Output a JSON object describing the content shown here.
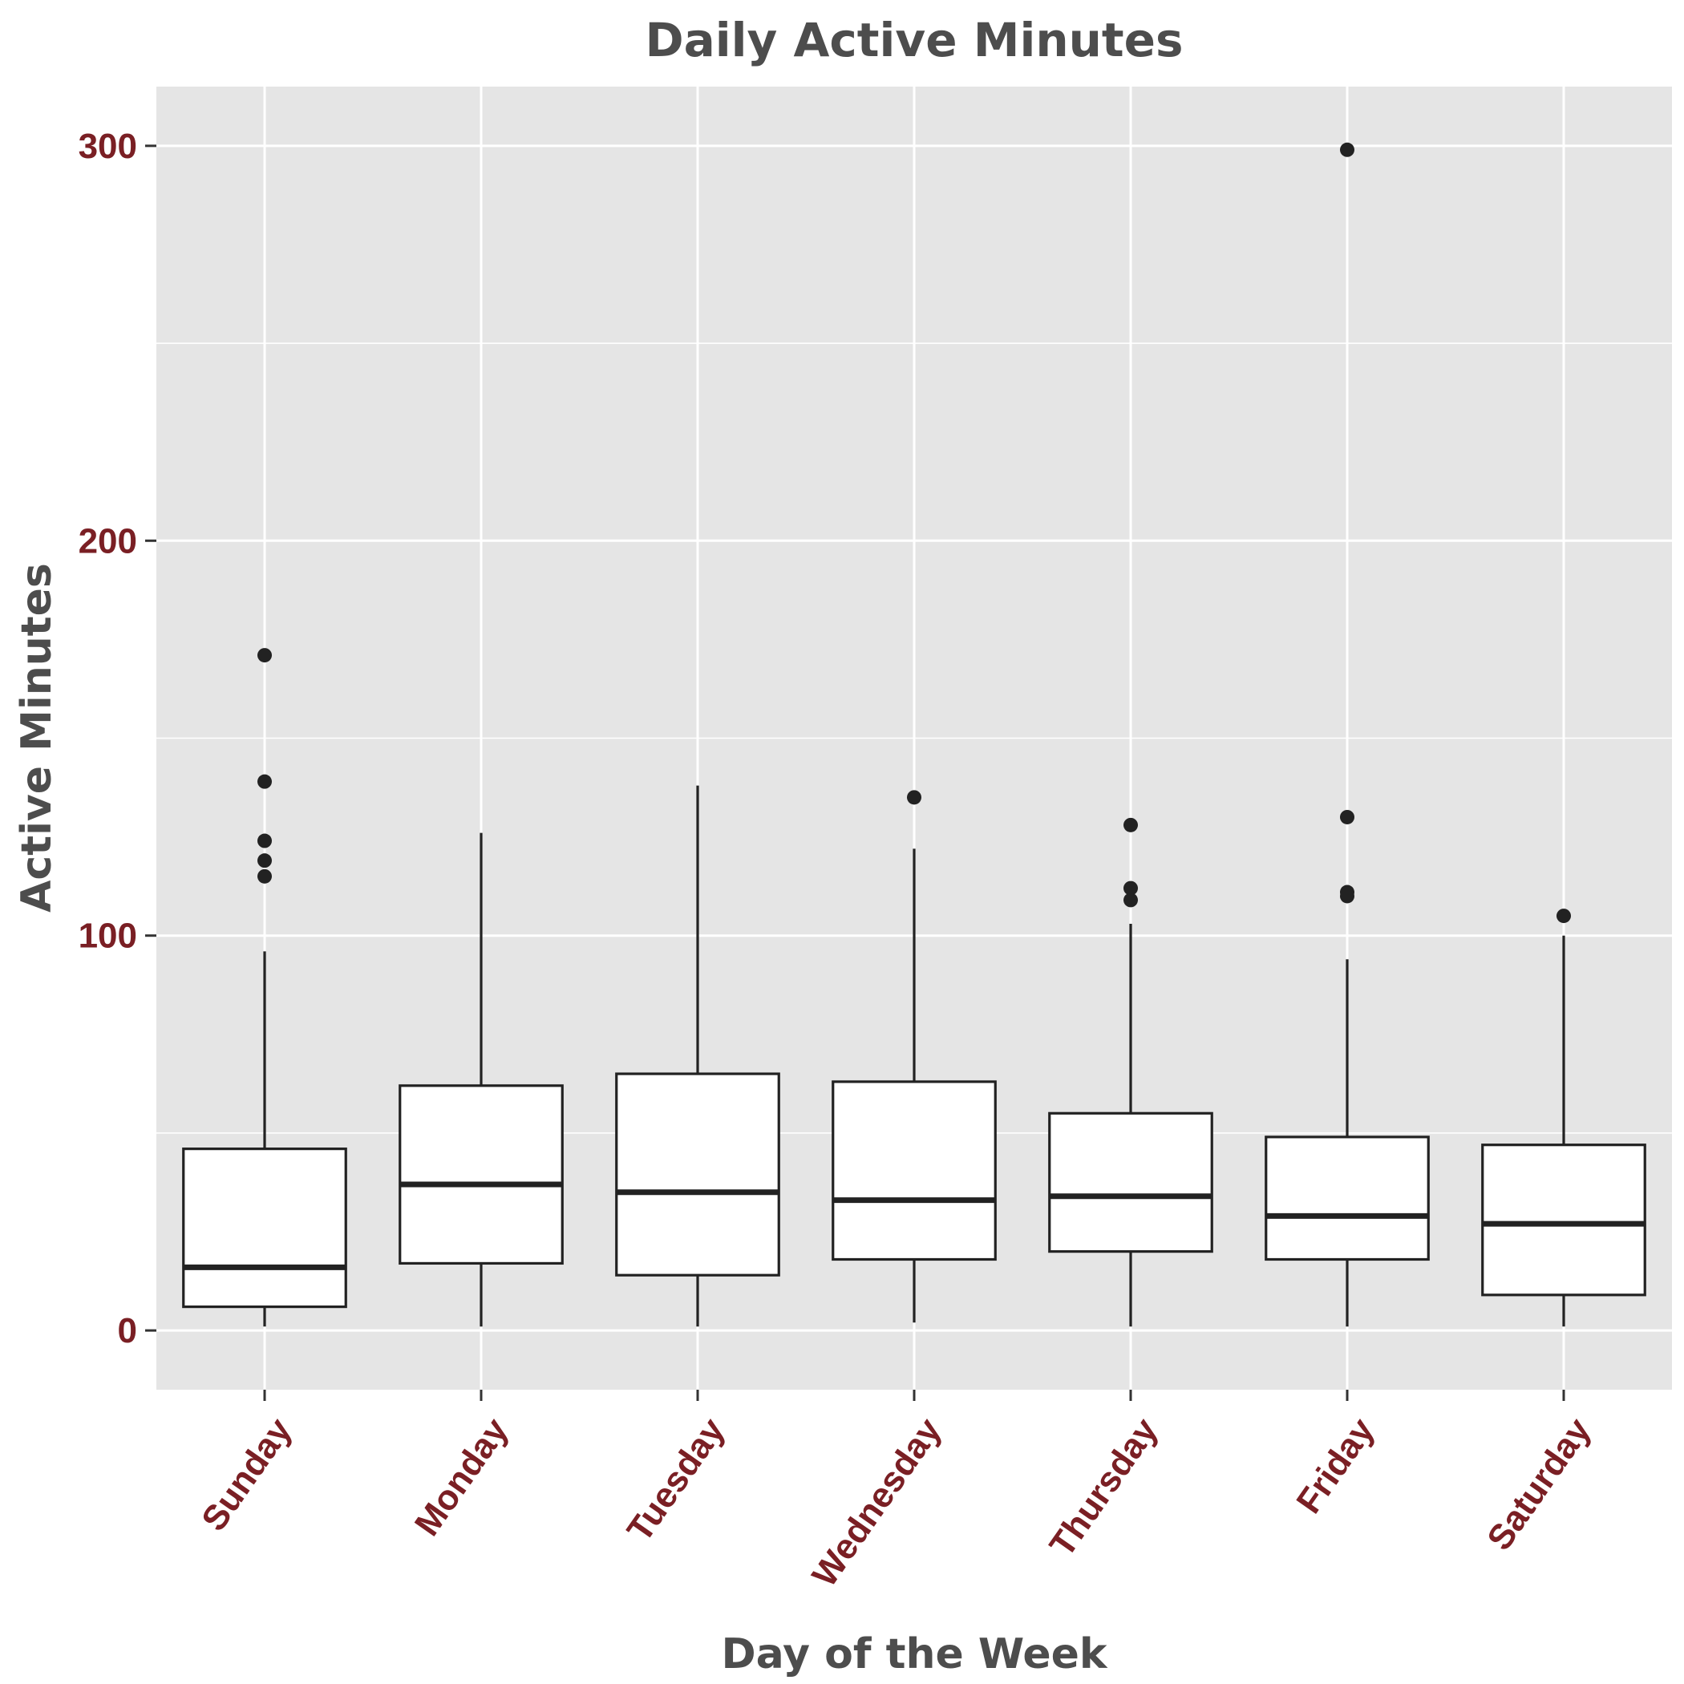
{
  "chart_data": {
    "type": "box",
    "title": "Daily Active Minutes",
    "xlabel": "Day of the Week",
    "ylabel": "Active Minutes",
    "ylim": [
      -15,
      315
    ],
    "yticks": [
      0,
      100,
      200,
      300
    ],
    "grid": true,
    "colors": {
      "panel": "#e5e5e5",
      "grid": "#ffffff",
      "box_fill": "#ffffff",
      "box_stroke": "#222222",
      "tick_label": "#7a1f24",
      "title": "#4d4d4d"
    },
    "categories": [
      "Sunday",
      "Monday",
      "Tuesday",
      "Wednesday",
      "Thursday",
      "Friday",
      "Saturday"
    ],
    "boxes": [
      {
        "category": "Sunday",
        "whisker_low": 1,
        "q1": 6,
        "median": 16,
        "q3": 46,
        "whisker_high": 96,
        "outliers": [
          171,
          139,
          124,
          119,
          115
        ]
      },
      {
        "category": "Monday",
        "whisker_low": 1,
        "q1": 17,
        "median": 37,
        "q3": 62,
        "whisker_high": 126,
        "outliers": []
      },
      {
        "category": "Tuesday",
        "whisker_low": 1,
        "q1": 14,
        "median": 35,
        "q3": 65,
        "whisker_high": 138,
        "outliers": []
      },
      {
        "category": "Wednesday",
        "whisker_low": 2,
        "q1": 18,
        "median": 33,
        "q3": 63,
        "whisker_high": 122,
        "outliers": [
          135
        ]
      },
      {
        "category": "Thursday",
        "whisker_low": 1,
        "q1": 20,
        "median": 34,
        "q3": 55,
        "whisker_high": 103,
        "outliers": [
          128,
          112,
          109
        ]
      },
      {
        "category": "Friday",
        "whisker_low": 1,
        "q1": 18,
        "median": 29,
        "q3": 49,
        "whisker_high": 94,
        "outliers": [
          299,
          130,
          111,
          110
        ]
      },
      {
        "category": "Saturday",
        "whisker_low": 1,
        "q1": 9,
        "median": 27,
        "q3": 47,
        "whisker_high": 100,
        "outliers": [
          105
        ]
      }
    ]
  }
}
